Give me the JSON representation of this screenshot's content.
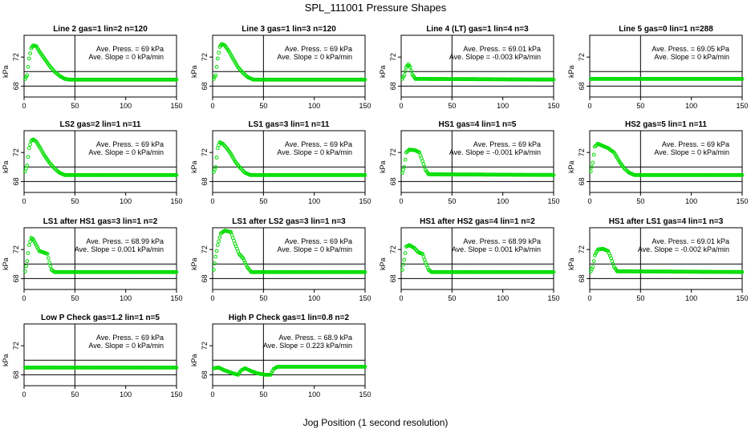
{
  "figure": {
    "title": "SPL_111001  Pressure Shapes",
    "xlabel": "Jog Position (1 second resolution)"
  },
  "colors": {
    "points": "#00dd00",
    "lines": "#000000"
  },
  "chart_data": [
    {
      "type": "scatter",
      "title": "Line 2 gas=1 lin=2 n=120",
      "stat_press": "Ave. Press. = 69  kPa",
      "stat_slope": "Ave. Slope = 0  kPa/min",
      "ylabel": "kPa",
      "xlim": [
        0,
        150
      ],
      "ylim": [
        66.5,
        75
      ],
      "xticks": [
        0,
        50,
        100,
        150
      ],
      "yticks": [
        68,
        72
      ],
      "hlines": [
        68,
        70
      ],
      "vline": 50,
      "shape": [
        [
          1,
          69
        ],
        [
          3,
          69.5
        ],
        [
          5,
          71.8
        ],
        [
          7,
          73.2
        ],
        [
          9,
          73.6
        ],
        [
          12,
          73.5
        ],
        [
          15,
          72.8
        ],
        [
          20,
          71.8
        ],
        [
          25,
          70.8
        ],
        [
          30,
          70.0
        ],
        [
          35,
          69.4
        ],
        [
          40,
          69.0
        ],
        [
          45,
          68.9
        ],
        [
          150,
          68.9
        ]
      ]
    },
    {
      "type": "scatter",
      "title": "Line 3 gas=1 lin=3 n=120",
      "stat_press": "Ave. Press. = 69  kPa",
      "stat_slope": "Ave. Slope = 0  kPa/min",
      "ylabel": "kPa",
      "xlim": [
        0,
        150
      ],
      "ylim": [
        66.5,
        75
      ],
      "xticks": [
        0,
        50,
        100,
        150
      ],
      "yticks": [
        68,
        72
      ],
      "hlines": [
        68,
        70
      ],
      "vline": 50,
      "shape": [
        [
          1,
          69
        ],
        [
          3,
          69.5
        ],
        [
          5,
          71.8
        ],
        [
          7,
          73.4
        ],
        [
          9,
          73.8
        ],
        [
          12,
          73.6
        ],
        [
          16,
          72.8
        ],
        [
          20,
          71.8
        ],
        [
          25,
          70.6
        ],
        [
          30,
          69.8
        ],
        [
          35,
          69.2
        ],
        [
          40,
          68.9
        ],
        [
          150,
          68.9
        ]
      ]
    },
    {
      "type": "scatter",
      "title": "Line 4 (LT) gas=1 lin=4 n=3",
      "stat_press": "Ave. Press. = 69.01  kPa",
      "stat_slope": "Ave. Slope = -0.003  kPa/min",
      "ylabel": "kPa",
      "xlim": [
        0,
        150
      ],
      "ylim": [
        66.5,
        75
      ],
      "xticks": [
        0,
        50,
        100,
        150
      ],
      "yticks": [
        68,
        72
      ],
      "hlines": [
        68,
        70
      ],
      "vline": 50,
      "shape": [
        [
          1,
          69
        ],
        [
          3,
          69.5
        ],
        [
          5,
          70.6
        ],
        [
          7,
          71.0
        ],
        [
          9,
          70.6
        ],
        [
          11,
          69.6
        ],
        [
          14,
          69.0
        ],
        [
          150,
          68.9
        ]
      ]
    },
    {
      "type": "scatter",
      "title": "Line 5 gas=0 lin=1 n=288",
      "stat_press": "Ave. Press. = 69.05  kPa",
      "stat_slope": "Ave. Slope = 0  kPa/min",
      "ylabel": "kPa",
      "xlim": [
        0,
        150
      ],
      "ylim": [
        66.5,
        75
      ],
      "xticks": [
        0,
        50,
        100,
        150
      ],
      "yticks": [
        68,
        72
      ],
      "hlines": [
        68,
        70
      ],
      "vline": 50,
      "shape": [
        [
          1,
          69.0
        ],
        [
          150,
          69.0
        ]
      ]
    },
    {
      "type": "scatter",
      "title": "LS2 gas=2 lin=1 n=11",
      "stat_press": "Ave. Press. = 69  kPa",
      "stat_slope": "Ave. Slope = 0  kPa/min",
      "ylabel": "kPa",
      "xlim": [
        0,
        150
      ],
      "ylim": [
        66.5,
        75
      ],
      "xticks": [
        0,
        50,
        100,
        150
      ],
      "yticks": [
        68,
        72
      ],
      "hlines": [
        68,
        70
      ],
      "vline": 50,
      "shape": [
        [
          1,
          69.4
        ],
        [
          3,
          70.2
        ],
        [
          5,
          72.6
        ],
        [
          7,
          73.6
        ],
        [
          9,
          73.8
        ],
        [
          12,
          73.5
        ],
        [
          16,
          72.6
        ],
        [
          20,
          71.6
        ],
        [
          25,
          70.6
        ],
        [
          30,
          69.8
        ],
        [
          35,
          69.2
        ],
        [
          40,
          68.9
        ],
        [
          150,
          68.9
        ]
      ]
    },
    {
      "type": "scatter",
      "title": "LS1 gas=3 lin=1 n=11",
      "stat_press": "Ave. Press. = 69  kPa",
      "stat_slope": "Ave. Slope = 0  kPa/min",
      "ylabel": "kPa",
      "xlim": [
        0,
        150
      ],
      "ylim": [
        66.5,
        75
      ],
      "xticks": [
        0,
        50,
        100,
        150
      ],
      "yticks": [
        68,
        72
      ],
      "hlines": [
        68,
        70
      ],
      "vline": 50,
      "shape": [
        [
          1,
          69.3
        ],
        [
          3,
          70.0
        ],
        [
          5,
          72.6
        ],
        [
          7,
          73.4
        ],
        [
          10,
          73.2
        ],
        [
          14,
          72.6
        ],
        [
          18,
          71.8
        ],
        [
          22,
          70.8
        ],
        [
          27,
          69.9
        ],
        [
          32,
          69.2
        ],
        [
          37,
          68.9
        ],
        [
          150,
          68.9
        ]
      ]
    },
    {
      "type": "scatter",
      "title": "HS1 gas=4 lin=1 n=5",
      "stat_press": "Ave. Press. = 69  kPa",
      "stat_slope": "Ave. Slope = -0.001  kPa/min",
      "ylabel": "kPa",
      "xlim": [
        0,
        150
      ],
      "ylim": [
        66.5,
        75
      ],
      "xticks": [
        0,
        50,
        100,
        150
      ],
      "yticks": [
        68,
        72
      ],
      "hlines": [
        68,
        70
      ],
      "vline": 50,
      "shape": [
        [
          1,
          69.2
        ],
        [
          3,
          70.0
        ],
        [
          5,
          72.0
        ],
        [
          8,
          72.4
        ],
        [
          14,
          72.3
        ],
        [
          18,
          72.0
        ],
        [
          21,
          70.8
        ],
        [
          24,
          69.6
        ],
        [
          27,
          69.0
        ],
        [
          150,
          68.9
        ]
      ]
    },
    {
      "type": "scatter",
      "title": "HS2 gas=5 lin=1 n=11",
      "stat_press": "Ave. Press. = 69  kPa",
      "stat_slope": "Ave. Slope = 0  kPa/min",
      "ylabel": "kPa",
      "xlim": [
        0,
        150
      ],
      "ylim": [
        66.5,
        75
      ],
      "xticks": [
        0,
        50,
        100,
        150
      ],
      "yticks": [
        68,
        72
      ],
      "hlines": [
        68,
        70
      ],
      "vline": 50,
      "shape": [
        [
          1,
          69.4
        ],
        [
          3,
          70.6
        ],
        [
          5,
          72.8
        ],
        [
          8,
          73.2
        ],
        [
          13,
          72.9
        ],
        [
          18,
          72.6
        ],
        [
          24,
          72.0
        ],
        [
          29,
          70.8
        ],
        [
          34,
          69.8
        ],
        [
          39,
          69.2
        ],
        [
          44,
          68.9
        ],
        [
          150,
          68.9
        ]
      ]
    },
    {
      "type": "scatter",
      "title": "LS1 after HS1 gas=3 lin=1 n=2",
      "stat_press": "Ave. Press. = 68.99  kPa",
      "stat_slope": "Ave. Slope = 0.001  kPa/min",
      "ylabel": "kPa",
      "xlim": [
        0,
        150
      ],
      "ylim": [
        66.5,
        75
      ],
      "xticks": [
        0,
        50,
        100,
        150
      ],
      "yticks": [
        68,
        72
      ],
      "hlines": [
        68,
        70
      ],
      "vline": 50,
      "shape": [
        [
          1,
          69.0
        ],
        [
          3,
          70.4
        ],
        [
          5,
          72.6
        ],
        [
          7,
          73.6
        ],
        [
          9,
          73.4
        ],
        [
          12,
          72.6
        ],
        [
          15,
          71.8
        ],
        [
          19,
          71.6
        ],
        [
          23,
          71.4
        ],
        [
          25,
          70.2
        ],
        [
          27,
          69.2
        ],
        [
          30,
          68.9
        ],
        [
          150,
          68.9
        ]
      ]
    },
    {
      "type": "scatter",
      "title": "LS1 after LS2 gas=3 lin=1 n=3",
      "stat_press": "Ave. Press. = 69  kPa",
      "stat_slope": "Ave. Slope = 0  kPa/min",
      "ylabel": "kPa",
      "xlim": [
        0,
        150
      ],
      "ylim": [
        66.5,
        75
      ],
      "xticks": [
        0,
        50,
        100,
        150
      ],
      "yticks": [
        68,
        72
      ],
      "hlines": [
        68,
        70
      ],
      "vline": 50,
      "shape": [
        [
          1,
          69.2
        ],
        [
          3,
          71.0
        ],
        [
          5,
          72.6
        ],
        [
          8,
          74.2
        ],
        [
          12,
          74.6
        ],
        [
          18,
          74.4
        ],
        [
          22,
          72.8
        ],
        [
          26,
          71.4
        ],
        [
          30,
          70.8
        ],
        [
          34,
          69.6
        ],
        [
          38,
          68.9
        ],
        [
          150,
          68.9
        ]
      ]
    },
    {
      "type": "scatter",
      "title": "HS1 after HS2 gas=4 lin=1 n=2",
      "stat_press": "Ave. Press. = 68.99  kPa",
      "stat_slope": "Ave. Slope = 0.001  kPa/min",
      "ylabel": "kPa",
      "xlim": [
        0,
        150
      ],
      "ylim": [
        66.5,
        75
      ],
      "xticks": [
        0,
        50,
        100,
        150
      ],
      "yticks": [
        68,
        72
      ],
      "hlines": [
        68,
        70
      ],
      "vline": 50,
      "shape": [
        [
          1,
          69.2
        ],
        [
          3,
          70.6
        ],
        [
          5,
          72.4
        ],
        [
          8,
          72.6
        ],
        [
          13,
          72.2
        ],
        [
          17,
          71.6
        ],
        [
          21,
          71.4
        ],
        [
          24,
          70.2
        ],
        [
          27,
          69.2
        ],
        [
          30,
          68.9
        ],
        [
          150,
          68.9
        ]
      ]
    },
    {
      "type": "scatter",
      "title": "HS1 after LS1 gas=4 lin=1 n=3",
      "stat_press": "Ave. Press. = 69.01  kPa",
      "stat_slope": "Ave. Slope = -0.002  kPa/min",
      "ylabel": "kPa",
      "xlim": [
        0,
        150
      ],
      "ylim": [
        66.5,
        75
      ],
      "xticks": [
        0,
        50,
        100,
        150
      ],
      "yticks": [
        68,
        72
      ],
      "hlines": [
        68,
        70
      ],
      "vline": 50,
      "shape": [
        [
          1,
          69.0
        ],
        [
          3,
          69.6
        ],
        [
          5,
          71.2
        ],
        [
          8,
          72.0
        ],
        [
          13,
          72.1
        ],
        [
          18,
          71.8
        ],
        [
          21,
          70.8
        ],
        [
          24,
          69.6
        ],
        [
          27,
          69.0
        ],
        [
          150,
          68.9
        ]
      ]
    },
    {
      "type": "scatter",
      "title": "Low P Check gas=1.2 lin=1 n=5",
      "stat_press": "Ave. Press. = 69  kPa",
      "stat_slope": "Ave. Slope = 0  kPa/min",
      "ylabel": "kPa",
      "xlim": [
        0,
        150
      ],
      "ylim": [
        66.5,
        75
      ],
      "xticks": [
        0,
        50,
        100,
        150
      ],
      "yticks": [
        68,
        72
      ],
      "hlines": [
        68,
        70
      ],
      "vline": 50,
      "shape": [
        [
          1,
          69.0
        ],
        [
          150,
          69.0
        ]
      ]
    },
    {
      "type": "scatter",
      "title": "High P Check gas=1 lin=0.8 n=2",
      "stat_press": "Ave. Press. = 68.9  kPa",
      "stat_slope": "Ave. Slope = 0.223  kPa/min",
      "ylabel": "kPa",
      "xlim": [
        0,
        150
      ],
      "ylim": [
        66.5,
        75
      ],
      "xticks": [
        0,
        50,
        100,
        150
      ],
      "yticks": [
        68,
        72
      ],
      "hlines": [
        68,
        70
      ],
      "vline": 50,
      "shape": [
        [
          1,
          68.9
        ],
        [
          6,
          69.0
        ],
        [
          12,
          68.6
        ],
        [
          20,
          68.2
        ],
        [
          25,
          68.0
        ],
        [
          28,
          68.6
        ],
        [
          32,
          68.9
        ],
        [
          38,
          68.5
        ],
        [
          44,
          68.2
        ],
        [
          52,
          68.0
        ],
        [
          57,
          68.0
        ],
        [
          60,
          68.8
        ],
        [
          64,
          69.1
        ],
        [
          150,
          69.1
        ]
      ]
    }
  ]
}
